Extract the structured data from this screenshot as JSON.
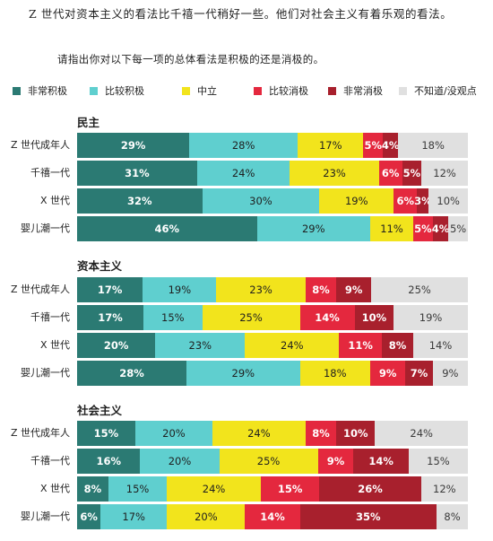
{
  "intro_text": "Z 世代对资本主义的看法比千禧一代稍好一些。他们对社会主义有着乐观的看法。",
  "prompt_text": "请指出你对以下每一项的总体看法是积极的还是消极的。",
  "legend": [
    {
      "label": "非常积极",
      "color": "#2b7a73"
    },
    {
      "label": "比较积极",
      "color": "#5fcfcf"
    },
    {
      "label": "中立",
      "color": "#f2e41c"
    },
    {
      "label": "比较消极",
      "color": "#e4283e"
    },
    {
      "label": "非常消极",
      "color": "#a8202d"
    },
    {
      "label": "不知道/没观点",
      "color": "#e0e0e0"
    }
  ],
  "chart_data": {
    "type": "bar",
    "stacked": true,
    "orientation": "horizontal",
    "series_names": [
      "非常积极",
      "比较积极",
      "中立",
      "比较消极",
      "非常消极",
      "不知道/没观点"
    ],
    "panels": [
      {
        "title": "民主",
        "rows": [
          {
            "label": "Z 世代成年人",
            "values": [
              29,
              28,
              17,
              5,
              4,
              18
            ]
          },
          {
            "label": "千禧一代",
            "values": [
              31,
              24,
              23,
              6,
              5,
              12
            ]
          },
          {
            "label": "X 世代",
            "values": [
              32,
              30,
              19,
              6,
              3,
              10
            ]
          },
          {
            "label": "婴儿潮一代",
            "values": [
              46,
              29,
              11,
              5,
              4,
              5
            ]
          }
        ]
      },
      {
        "title": "资本主义",
        "rows": [
          {
            "label": "Z 世代成年人",
            "values": [
              17,
              19,
              23,
              8,
              9,
              25
            ]
          },
          {
            "label": "千禧一代",
            "values": [
              17,
              15,
              25,
              14,
              10,
              19
            ]
          },
          {
            "label": "X 世代",
            "values": [
              20,
              23,
              24,
              11,
              8,
              14
            ]
          },
          {
            "label": "婴儿潮一代",
            "values": [
              28,
              29,
              18,
              9,
              7,
              9
            ]
          }
        ]
      },
      {
        "title": "社会主义",
        "rows": [
          {
            "label": "Z 世代成年人",
            "values": [
              15,
              20,
              24,
              8,
              10,
              24
            ]
          },
          {
            "label": "千禧一代",
            "values": [
              16,
              20,
              25,
              9,
              14,
              15
            ]
          },
          {
            "label": "X 世代",
            "values": [
              8,
              15,
              24,
              15,
              26,
              12
            ]
          },
          {
            "label": "婴儿潮一代",
            "values": [
              6,
              17,
              20,
              14,
              35,
              8
            ]
          }
        ]
      }
    ]
  }
}
